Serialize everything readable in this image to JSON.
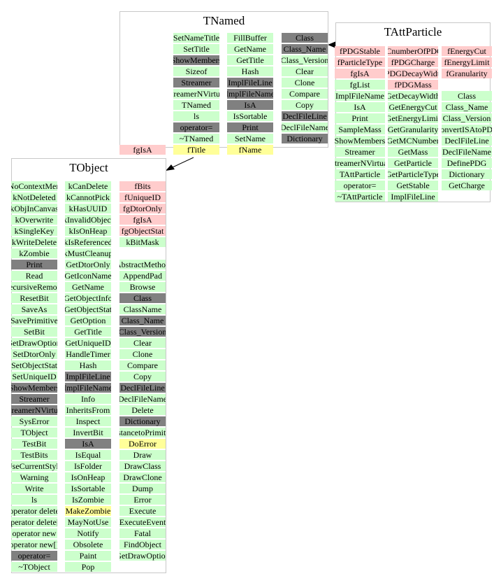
{
  "classes": [
    {
      "title": "TNamed",
      "columns": [
        {
          "cells": [
            "SetNameTitle",
            "SetTitle",
            "ShowMembers",
            "Sizeof",
            "Streamer",
            "StreamerNVirtual",
            "TNamed",
            "ls",
            "operator=",
            "~TNamed",
            "fTitle"
          ],
          "fills": [
            "#ccffcc",
            "#ccffcc",
            "#808080",
            "#ccffcc",
            "#808080",
            "#ccffcc",
            "#ccffcc",
            "#ccffcc",
            "#808080",
            "#ccffcc",
            "#ffff99"
          ]
        },
        {
          "cells": [
            "FillBuffer",
            "GetName",
            "GetTitle",
            "Hash",
            "ImplFileLine",
            "ImplFileName",
            "IsA",
            "IsSortable",
            "Print",
            "SetName",
            "fName"
          ],
          "fills": [
            "#ccffcc",
            "#ccffcc",
            "#ccffcc",
            "#ccffcc",
            "#808080",
            "#808080",
            "#808080",
            "#ccffcc",
            "#808080",
            "#ccffcc",
            "#ffff99"
          ]
        },
        {
          "cells": [
            "Class",
            "Class_Name",
            "Class_Version",
            "Clear",
            "Clone",
            "Compare",
            "Copy",
            "DeclFileLine",
            "DeclFileName",
            "Dictionary"
          ],
          "fills": [
            "#808080",
            "#808080",
            "#ccffcc",
            "#ccffcc",
            "#ccffcc",
            "#ccffcc",
            "#ccffcc",
            "#808080",
            "#ccffcc",
            "#808080"
          ]
        },
        {
          "cells": [
            null,
            null,
            null,
            null,
            null,
            null,
            null,
            null,
            null,
            null,
            "fgIsA"
          ],
          "fills": [
            null,
            null,
            null,
            null,
            null,
            null,
            null,
            null,
            null,
            null,
            "#ffcccc"
          ]
        }
      ]
    },
    {
      "title": "TAttParticle",
      "columns": [
        {
          "cells": [
            "fPDGStable",
            "fParticleType",
            "fgIsA",
            "fgList",
            "ImplFileName",
            "IsA",
            "Print",
            "SampleMass",
            "ShowMembers",
            "Streamer",
            "StreamerNVirtual",
            "TAttParticle",
            "operator=",
            "~TAttParticle"
          ],
          "fills": [
            "#ffcccc",
            "#ffcccc",
            "#ffcccc",
            "#ccffcc",
            "#ccffcc",
            "#ccffcc",
            "#ccffcc",
            "#ccffcc",
            "#ccffcc",
            "#ccffcc",
            "#ccffcc",
            "#ccffcc",
            "#ccffcc",
            "#ccffcc"
          ]
        },
        {
          "cells": [
            "fCnumberOfPDG",
            "fPDGCharge",
            "fPDGDecayWidth",
            "fPDGMass",
            "GetDecayWidth",
            "GetEnergyCut",
            "GetEnergyLimit",
            "GetGranularity",
            "GetMCNumber",
            "GetMass",
            "GetParticle",
            "GetParticleType",
            "GetStable",
            "ImplFileLine"
          ],
          "fills": [
            "#ffcccc",
            "#ffcccc",
            "#ffcccc",
            "#ffcccc",
            "#ccffcc",
            "#ccffcc",
            "#ccffcc",
            "#ccffcc",
            "#ccffcc",
            "#ccffcc",
            "#ccffcc",
            "#ccffcc",
            "#ccffcc",
            "#ccffcc"
          ]
        },
        {
          "cells": [
            "fEnergyCut",
            "fEnergyLimit",
            "fGranularity",
            null,
            "Class",
            "Class_Name",
            "Class_Version",
            "ConvertISAtoPDG",
            "DeclFileLine",
            "DeclFileName",
            "DefinePDG",
            "Dictionary",
            "GetCharge"
          ],
          "fills": [
            "#ffcccc",
            "#ffcccc",
            "#ffcccc",
            null,
            "#ccffcc",
            "#ccffcc",
            "#ccffcc",
            "#ccffcc",
            "#ccffcc",
            "#ccffcc",
            "#ccffcc",
            "#ccffcc",
            "#ccffcc"
          ]
        }
      ]
    },
    {
      "title": "TObject",
      "columns": [
        {
          "cells": [
            "kNoContextMenu",
            "kNotDeleted",
            "kObjInCanvas",
            "kOverwrite",
            "kSingleKey",
            "kWriteDelete",
            "kZombie",
            "Print",
            "Read",
            "RecursiveRemove",
            "ResetBit",
            "SaveAs",
            "SavePrimitive",
            "SetBit",
            "SetDrawOption",
            "SetDtorOnly",
            "SetObjectStat",
            "SetUniqueID",
            "ShowMembers",
            "Streamer",
            "StreamerNVirtual",
            "SysError",
            "TObject",
            "TestBit",
            "TestBits",
            "UseCurrentStyle",
            "Warning",
            "Write",
            "ls",
            "operator delete",
            "operator delete[]",
            "operator new",
            "operator new[]",
            "operator=",
            "~TObject"
          ],
          "fills": [
            "#ccffcc",
            "#ccffcc",
            "#ccffcc",
            "#ccffcc",
            "#ccffcc",
            "#ccffcc",
            "#ccffcc",
            "#808080",
            "#ccffcc",
            "#ccffcc",
            "#ccffcc",
            "#ccffcc",
            "#ccffcc",
            "#ccffcc",
            "#ccffcc",
            "#ccffcc",
            "#ccffcc",
            "#ccffcc",
            "#808080",
            "#808080",
            "#808080",
            "#ccffcc",
            "#ccffcc",
            "#ccffcc",
            "#ccffcc",
            "#ccffcc",
            "#ccffcc",
            "#ccffcc",
            "#ccffcc",
            "#ccffcc",
            "#ccffcc",
            "#ccffcc",
            "#ccffcc",
            "#808080",
            "#ccffcc"
          ]
        },
        {
          "cells": [
            "kCanDelete",
            "kCannotPick",
            "kHasUUID",
            "kInvalidObject",
            "kIsOnHeap",
            "kIsReferenced",
            "kMustCleanup",
            "GetDtorOnly",
            "GetIconName",
            "GetName",
            "GetObjectInfo",
            "GetObjectStat",
            "GetOption",
            "GetTitle",
            "GetUniqueID",
            "HandleTimer",
            "Hash",
            "ImplFileLine",
            "ImplFileName",
            "Info",
            "InheritsFrom",
            "Inspect",
            "InvertBit",
            "IsA",
            "IsEqual",
            "IsFolder",
            "IsOnHeap",
            "IsSortable",
            "IsZombie",
            "MakeZombie",
            "MayNotUse",
            "Notify",
            "Obsolete",
            "Paint",
            "Pop"
          ],
          "fills": [
            "#ccffcc",
            "#ccffcc",
            "#ccffcc",
            "#ccffcc",
            "#ccffcc",
            "#ccffcc",
            "#ccffcc",
            "#ccffcc",
            "#ccffcc",
            "#ccffcc",
            "#ccffcc",
            "#ccffcc",
            "#ccffcc",
            "#ccffcc",
            "#ccffcc",
            "#ccffcc",
            "#ccffcc",
            "#808080",
            "#808080",
            "#ccffcc",
            "#ccffcc",
            "#ccffcc",
            "#ccffcc",
            "#808080",
            "#ccffcc",
            "#ccffcc",
            "#ccffcc",
            "#ccffcc",
            "#ccffcc",
            "#ffff99",
            "#ccffcc",
            "#ccffcc",
            "#ccffcc",
            "#ccffcc",
            "#ccffcc"
          ]
        },
        {
          "cells": [
            "fBits",
            "fUniqueID",
            "fgDtorOnly",
            "fgIsA",
            "fgObjectStat",
            "kBitMask",
            null,
            "AbstractMethod",
            "AppendPad",
            "Browse",
            "Class",
            "ClassName",
            "Class_Name",
            "Class_Version",
            "Clear",
            "Clone",
            "Compare",
            "Copy",
            "DeclFileLine",
            "DeclFileName",
            "Delete",
            "Dictionary",
            "DistancetoPrimitive",
            "DoError",
            "Draw",
            "DrawClass",
            "DrawClone",
            "Dump",
            "Error",
            "Execute",
            "ExecuteEvent",
            "Fatal",
            "FindObject",
            "GetDrawOption"
          ],
          "fills": [
            "#ffcccc",
            "#ffcccc",
            "#ffcccc",
            "#ffcccc",
            "#ffcccc",
            "#ccffcc",
            null,
            "#ccffcc",
            "#ccffcc",
            "#ccffcc",
            "#808080",
            "#ccffcc",
            "#808080",
            "#808080",
            "#ccffcc",
            "#ccffcc",
            "#ccffcc",
            "#ccffcc",
            "#808080",
            "#ccffcc",
            "#ccffcc",
            "#808080",
            "#ccffcc",
            "#ffff99",
            "#ccffcc",
            "#ccffcc",
            "#ccffcc",
            "#ccffcc",
            "#ccffcc",
            "#ccffcc",
            "#ccffcc",
            "#ccffcc",
            "#ccffcc",
            "#ccffcc"
          ]
        }
      ]
    }
  ]
}
